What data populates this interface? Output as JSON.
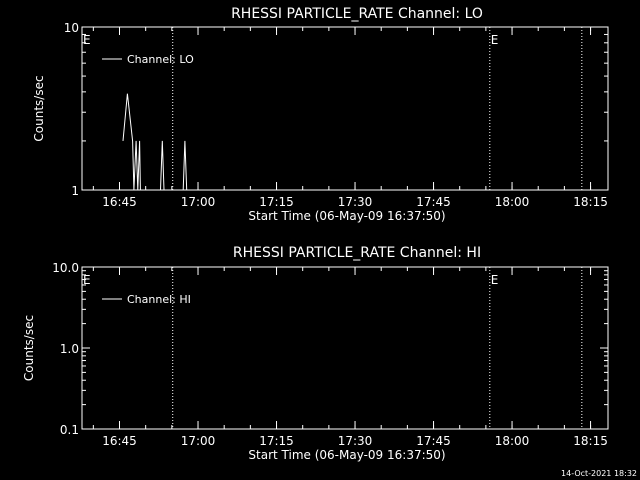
{
  "background": "#000000",
  "foreground": "#ffffff",
  "footer": {
    "date_stamp": "14-Oct-2021 18:32"
  },
  "chart_data": [
    {
      "type": "line",
      "title": "RHESSI PARTICLE_RATE Channel: LO",
      "xlabel": "Start Time (06-May-09 16:37:50)",
      "ylabel": "Counts/sec",
      "y_scale": "log",
      "ylim": [
        1,
        10
      ],
      "y_ticks": [
        {
          "value": 1,
          "label": "1"
        },
        {
          "value": 10,
          "label": "10"
        }
      ],
      "xlim": [
        "16:37:50",
        "18:18:20"
      ],
      "x_ticks": [
        "16:45",
        "17:00",
        "17:15",
        "17:30",
        "17:45",
        "18:00",
        "18:15"
      ],
      "legend": {
        "position": "top-left",
        "entries": [
          "Channel: LO"
        ]
      },
      "series": [
        {
          "name": "Channel: LO",
          "points": [
            {
              "x": "16:45:40",
              "y": 2.0
            },
            {
              "x": "16:46:30",
              "y": 3.9
            },
            {
              "x": "16:47:30",
              "y": 2.0
            },
            {
              "x": "16:47:45",
              "y": 1.0
            },
            {
              "x": "16:48:10",
              "y": 2.0
            },
            {
              "x": "16:48:30",
              "y": 1.0
            },
            {
              "x": "16:48:50",
              "y": 2.0
            },
            {
              "x": "16:49:00",
              "y": 1.0
            },
            {
              "x": "16:52:50",
              "y": 1.0
            },
            {
              "x": "16:53:10",
              "y": 2.0
            },
            {
              "x": "16:53:30",
              "y": 1.0
            },
            {
              "x": "16:57:10",
              "y": 1.0
            },
            {
              "x": "16:57:30",
              "y": 2.0
            },
            {
              "x": "16:57:50",
              "y": 1.0
            }
          ]
        }
      ],
      "event_lines": [
        {
          "time": "16:55:10",
          "label": ""
        },
        {
          "time": "17:55:45",
          "label": "E"
        },
        {
          "time": "18:13:20",
          "label": ""
        }
      ],
      "edge_labels": [
        {
          "position": "left",
          "label": "E"
        }
      ]
    },
    {
      "type": "line",
      "title": "RHESSI PARTICLE_RATE Channel: HI",
      "xlabel": "Start Time (06-May-09 16:37:50)",
      "ylabel": "Counts/sec",
      "y_scale": "log",
      "ylim": [
        0.1,
        10
      ],
      "y_ticks": [
        {
          "value": 0.1,
          "label": "0.1"
        },
        {
          "value": 1,
          "label": "1.0"
        },
        {
          "value": 10,
          "label": "10.0"
        }
      ],
      "xlim": [
        "16:37:50",
        "18:18:20"
      ],
      "x_ticks": [
        "16:45",
        "17:00",
        "17:15",
        "17:30",
        "17:45",
        "18:00",
        "18:15"
      ],
      "legend": {
        "position": "top-left",
        "entries": [
          "Channel: HI"
        ]
      },
      "series": [
        {
          "name": "Channel: HI",
          "points": []
        }
      ],
      "event_lines": [
        {
          "time": "16:55:10",
          "label": ""
        },
        {
          "time": "17:55:45",
          "label": "E"
        },
        {
          "time": "18:13:20",
          "label": ""
        }
      ],
      "edge_labels": [
        {
          "position": "left",
          "label": "E"
        }
      ]
    }
  ]
}
